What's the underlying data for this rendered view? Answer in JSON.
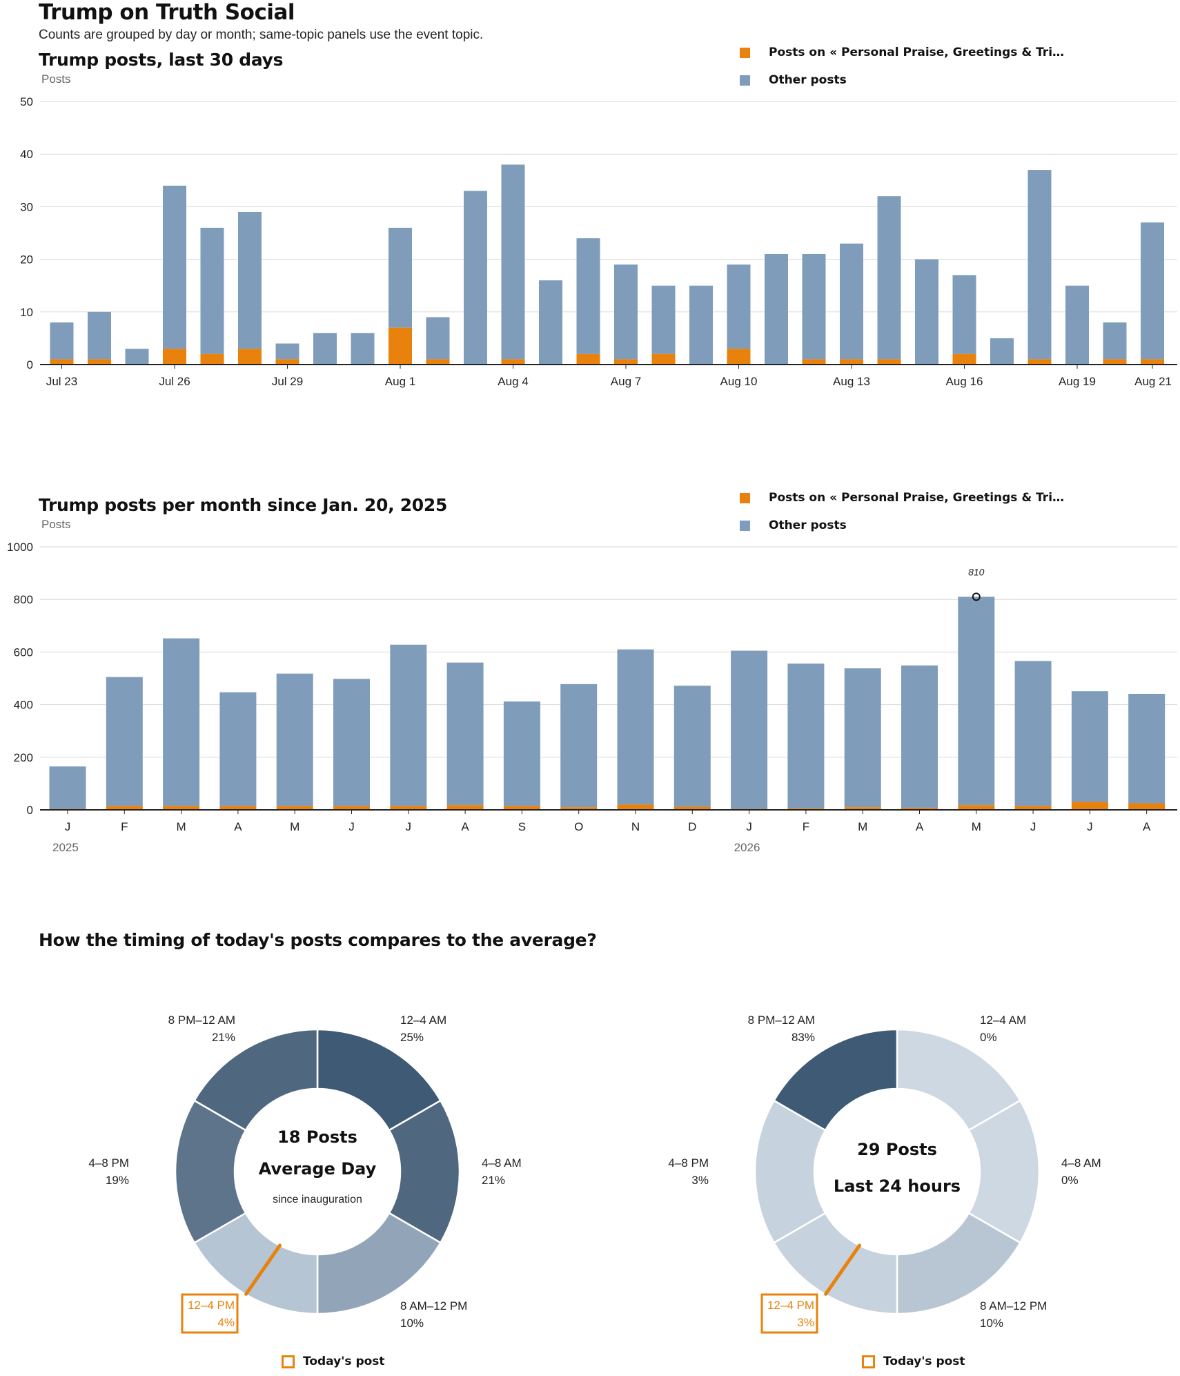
{
  "page": {
    "title": "Trump on Truth Social",
    "subtitle": "Counts are grouped by day or month; same-topic panels use the event topic."
  },
  "colors": {
    "topic": "#e8820c",
    "other": "#7f9dbb",
    "highlight": "#e8820c"
  },
  "chart_data": [
    {
      "type": "bar",
      "stacked": true,
      "title": "Trump posts, last 30 days",
      "ylabel": "Posts",
      "ylim": [
        0,
        50
      ],
      "yticks": [
        0,
        10,
        20,
        30,
        40,
        50
      ],
      "grid": true,
      "legend_position": "top-right",
      "legend": [
        "Posts on « Personal Praise, Greetings & Tri…",
        "Other posts"
      ],
      "categories": [
        "Jul 23",
        "Jul 24",
        "Jul 25",
        "Jul 26",
        "Jul 27",
        "Jul 28",
        "Jul 29",
        "Jul 30",
        "Jul 31",
        "Aug 1",
        "Aug 2",
        "Aug 3",
        "Aug 4",
        "Aug 5",
        "Aug 6",
        "Aug 7",
        "Aug 8",
        "Aug 9",
        "Aug 10",
        "Aug 11",
        "Aug 12",
        "Aug 13",
        "Aug 14",
        "Aug 15",
        "Aug 16",
        "Aug 17",
        "Aug 18",
        "Aug 19",
        "Aug 20",
        "Aug 21"
      ],
      "tick_labels": [
        {
          "index": 0,
          "label": "Jul 23"
        },
        {
          "index": 3,
          "label": "Jul 26"
        },
        {
          "index": 6,
          "label": "Jul 29"
        },
        {
          "index": 9,
          "label": "Aug 1"
        },
        {
          "index": 12,
          "label": "Aug 4"
        },
        {
          "index": 15,
          "label": "Aug 7"
        },
        {
          "index": 18,
          "label": "Aug 10"
        },
        {
          "index": 21,
          "label": "Aug 13"
        },
        {
          "index": 24,
          "label": "Aug 16"
        },
        {
          "index": 27,
          "label": "Aug 19"
        },
        {
          "index": 29,
          "label": "Aug 21"
        }
      ],
      "series": [
        {
          "key": "topic",
          "values": [
            1,
            1,
            0,
            3,
            2,
            3,
            1,
            0,
            0,
            7,
            1,
            0,
            1,
            0,
            2,
            1,
            2,
            0,
            3,
            0,
            1,
            1,
            1,
            0,
            2,
            0,
            1,
            0,
            1,
            1
          ]
        },
        {
          "key": "other",
          "values": [
            7,
            9,
            3,
            31,
            24,
            26,
            3,
            6,
            6,
            19,
            8,
            33,
            37,
            16,
            22,
            18,
            13,
            15,
            16,
            21,
            20,
            22,
            31,
            20,
            15,
            5,
            36,
            15,
            7,
            26
          ]
        }
      ]
    },
    {
      "type": "bar",
      "stacked": true,
      "title": "Trump posts per month since Jan. 20, 2025",
      "ylabel": "Posts",
      "ylim": [
        0,
        1000
      ],
      "yticks": [
        0,
        200,
        400,
        600,
        800,
        1000
      ],
      "grid": true,
      "legend_position": "top-right",
      "legend": [
        "Posts on « Personal Praise, Greetings & Tri…",
        "Other posts"
      ],
      "categories": [
        "J",
        "F",
        "M",
        "A",
        "M",
        "J",
        "J",
        "A",
        "S",
        "O",
        "N",
        "D",
        "J",
        "F",
        "M",
        "A",
        "M",
        "J",
        "J",
        "A"
      ],
      "years": [
        {
          "index": 0,
          "label": "2025"
        },
        {
          "index": 12,
          "label": "2026"
        }
      ],
      "annotation": {
        "index": 16,
        "value": 810,
        "label": "810"
      },
      "series": [
        {
          "key": "topic",
          "values": [
            4,
            15,
            15,
            15,
            15,
            15,
            15,
            18,
            15,
            10,
            20,
            12,
            4,
            6,
            10,
            8,
            18,
            15,
            30,
            25
          ]
        },
        {
          "key": "other",
          "values": [
            161,
            490,
            637,
            432,
            503,
            483,
            613,
            542,
            397,
            468,
            590,
            460,
            601,
            550,
            528,
            541,
            792,
            551,
            421,
            416
          ]
        }
      ]
    },
    {
      "type": "pie",
      "donut": true,
      "section_title": "How the timing of today's posts compares to the average?",
      "center_lines": [
        "18 Posts",
        "Average Day",
        "since inauguration"
      ],
      "highlight_index": 3,
      "slices": [
        {
          "label": "12–4 AM",
          "value": 25,
          "pct": "25%",
          "color": "#3e5a75"
        },
        {
          "label": "4–8 AM",
          "value": 21,
          "pct": "21%",
          "color": "#4f6880"
        },
        {
          "label": "8 AM–12 PM",
          "value": 10,
          "pct": "10%",
          "color": "#92a5b8"
        },
        {
          "label": "12–4 PM",
          "value": 4,
          "pct": "4%",
          "color": "#b6c5d3"
        },
        {
          "label": "4–8 PM",
          "value": 19,
          "pct": "19%",
          "color": "#5d748b"
        },
        {
          "label": "8 PM–12 AM",
          "value": 21,
          "pct": "21%",
          "color": "#4f6880"
        }
      ],
      "legend": "Today's post"
    },
    {
      "type": "pie",
      "donut": true,
      "center_lines": [
        "29 Posts",
        "Last 24 hours"
      ],
      "highlight_index": 3,
      "slices": [
        {
          "label": "12–4 AM",
          "value": 0,
          "pct": "0%",
          "color": "#cdd8e3"
        },
        {
          "label": "4–8 AM",
          "value": 0,
          "pct": "0%",
          "color": "#cdd8e3"
        },
        {
          "label": "8 AM–12 PM",
          "value": 10,
          "pct": "10%",
          "color": "#b8c5d2"
        },
        {
          "label": "12–4 PM",
          "value": 3,
          "pct": "3%",
          "color": "#c6d2dd"
        },
        {
          "label": "4–8 PM",
          "value": 3,
          "pct": "3%",
          "color": "#c6d2dd"
        },
        {
          "label": "8 PM–12 AM",
          "value": 83,
          "pct": "83%",
          "color": "#3e5a75"
        }
      ],
      "legend": "Today's post"
    }
  ]
}
